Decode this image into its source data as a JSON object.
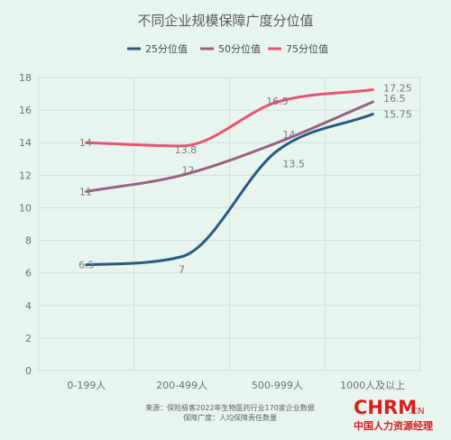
{
  "chart_data": {
    "type": "line",
    "title": "不同企业规模保障广度分位值",
    "categories": [
      "0-199人",
      "200-499人",
      "500-999人",
      "1000人及以上"
    ],
    "ylim": [
      0,
      18
    ],
    "yticks": [
      0,
      2,
      4,
      6,
      8,
      10,
      12,
      14,
      16,
      18
    ],
    "grid": true,
    "legend_position": "top",
    "series": [
      {
        "name": "25分位值",
        "values": [
          6.5,
          7,
          13.5,
          15.75
        ],
        "labels": [
          "6.5",
          "7",
          "13.5",
          "15.75"
        ],
        "color": "#2a5a80"
      },
      {
        "name": "50分位值",
        "values": [
          11,
          12,
          14,
          16.5
        ],
        "labels": [
          "11",
          "12",
          "14",
          "16.5"
        ],
        "color": "#9a6080"
      },
      {
        "name": "75分位值",
        "values": [
          14,
          13.8,
          16.5,
          17.25
        ],
        "labels": [
          "14",
          "13.8",
          "16.5",
          "17.25"
        ],
        "color": "#e85470"
      }
    ],
    "source_lines": [
      "来源：保险极客2022年生物医药行业170家企业数据",
      "保障广度：人均保障责任数量"
    ]
  },
  "logo": {
    "main": "CHRM",
    "suffix": ".CN",
    "subtitle": "中国人力资源经理"
  }
}
